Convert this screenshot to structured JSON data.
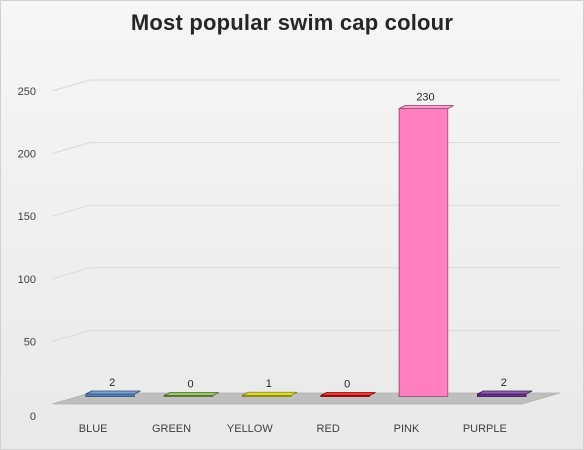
{
  "chart_data": {
    "type": "bar",
    "style": "3d-column",
    "title": "Most popular swim cap colour",
    "xlabel": "",
    "ylabel": "",
    "categories": [
      "BLUE",
      "GREEN",
      "YELLOW",
      "RED",
      "PINK",
      "PURPLE"
    ],
    "values": [
      2,
      0,
      1,
      0,
      230,
      2
    ],
    "data_labels": [
      "2",
      "0",
      "1",
      "0",
      "230",
      "2"
    ],
    "colors": [
      "#4f81bd",
      "#7cb342",
      "#d4d40a",
      "#e00000",
      "#ff7fbf",
      "#6a2c8e"
    ],
    "ylim": [
      0,
      250
    ],
    "yticks": [
      0,
      50,
      100,
      150,
      200,
      250
    ],
    "grid": true,
    "legend": "none"
  }
}
